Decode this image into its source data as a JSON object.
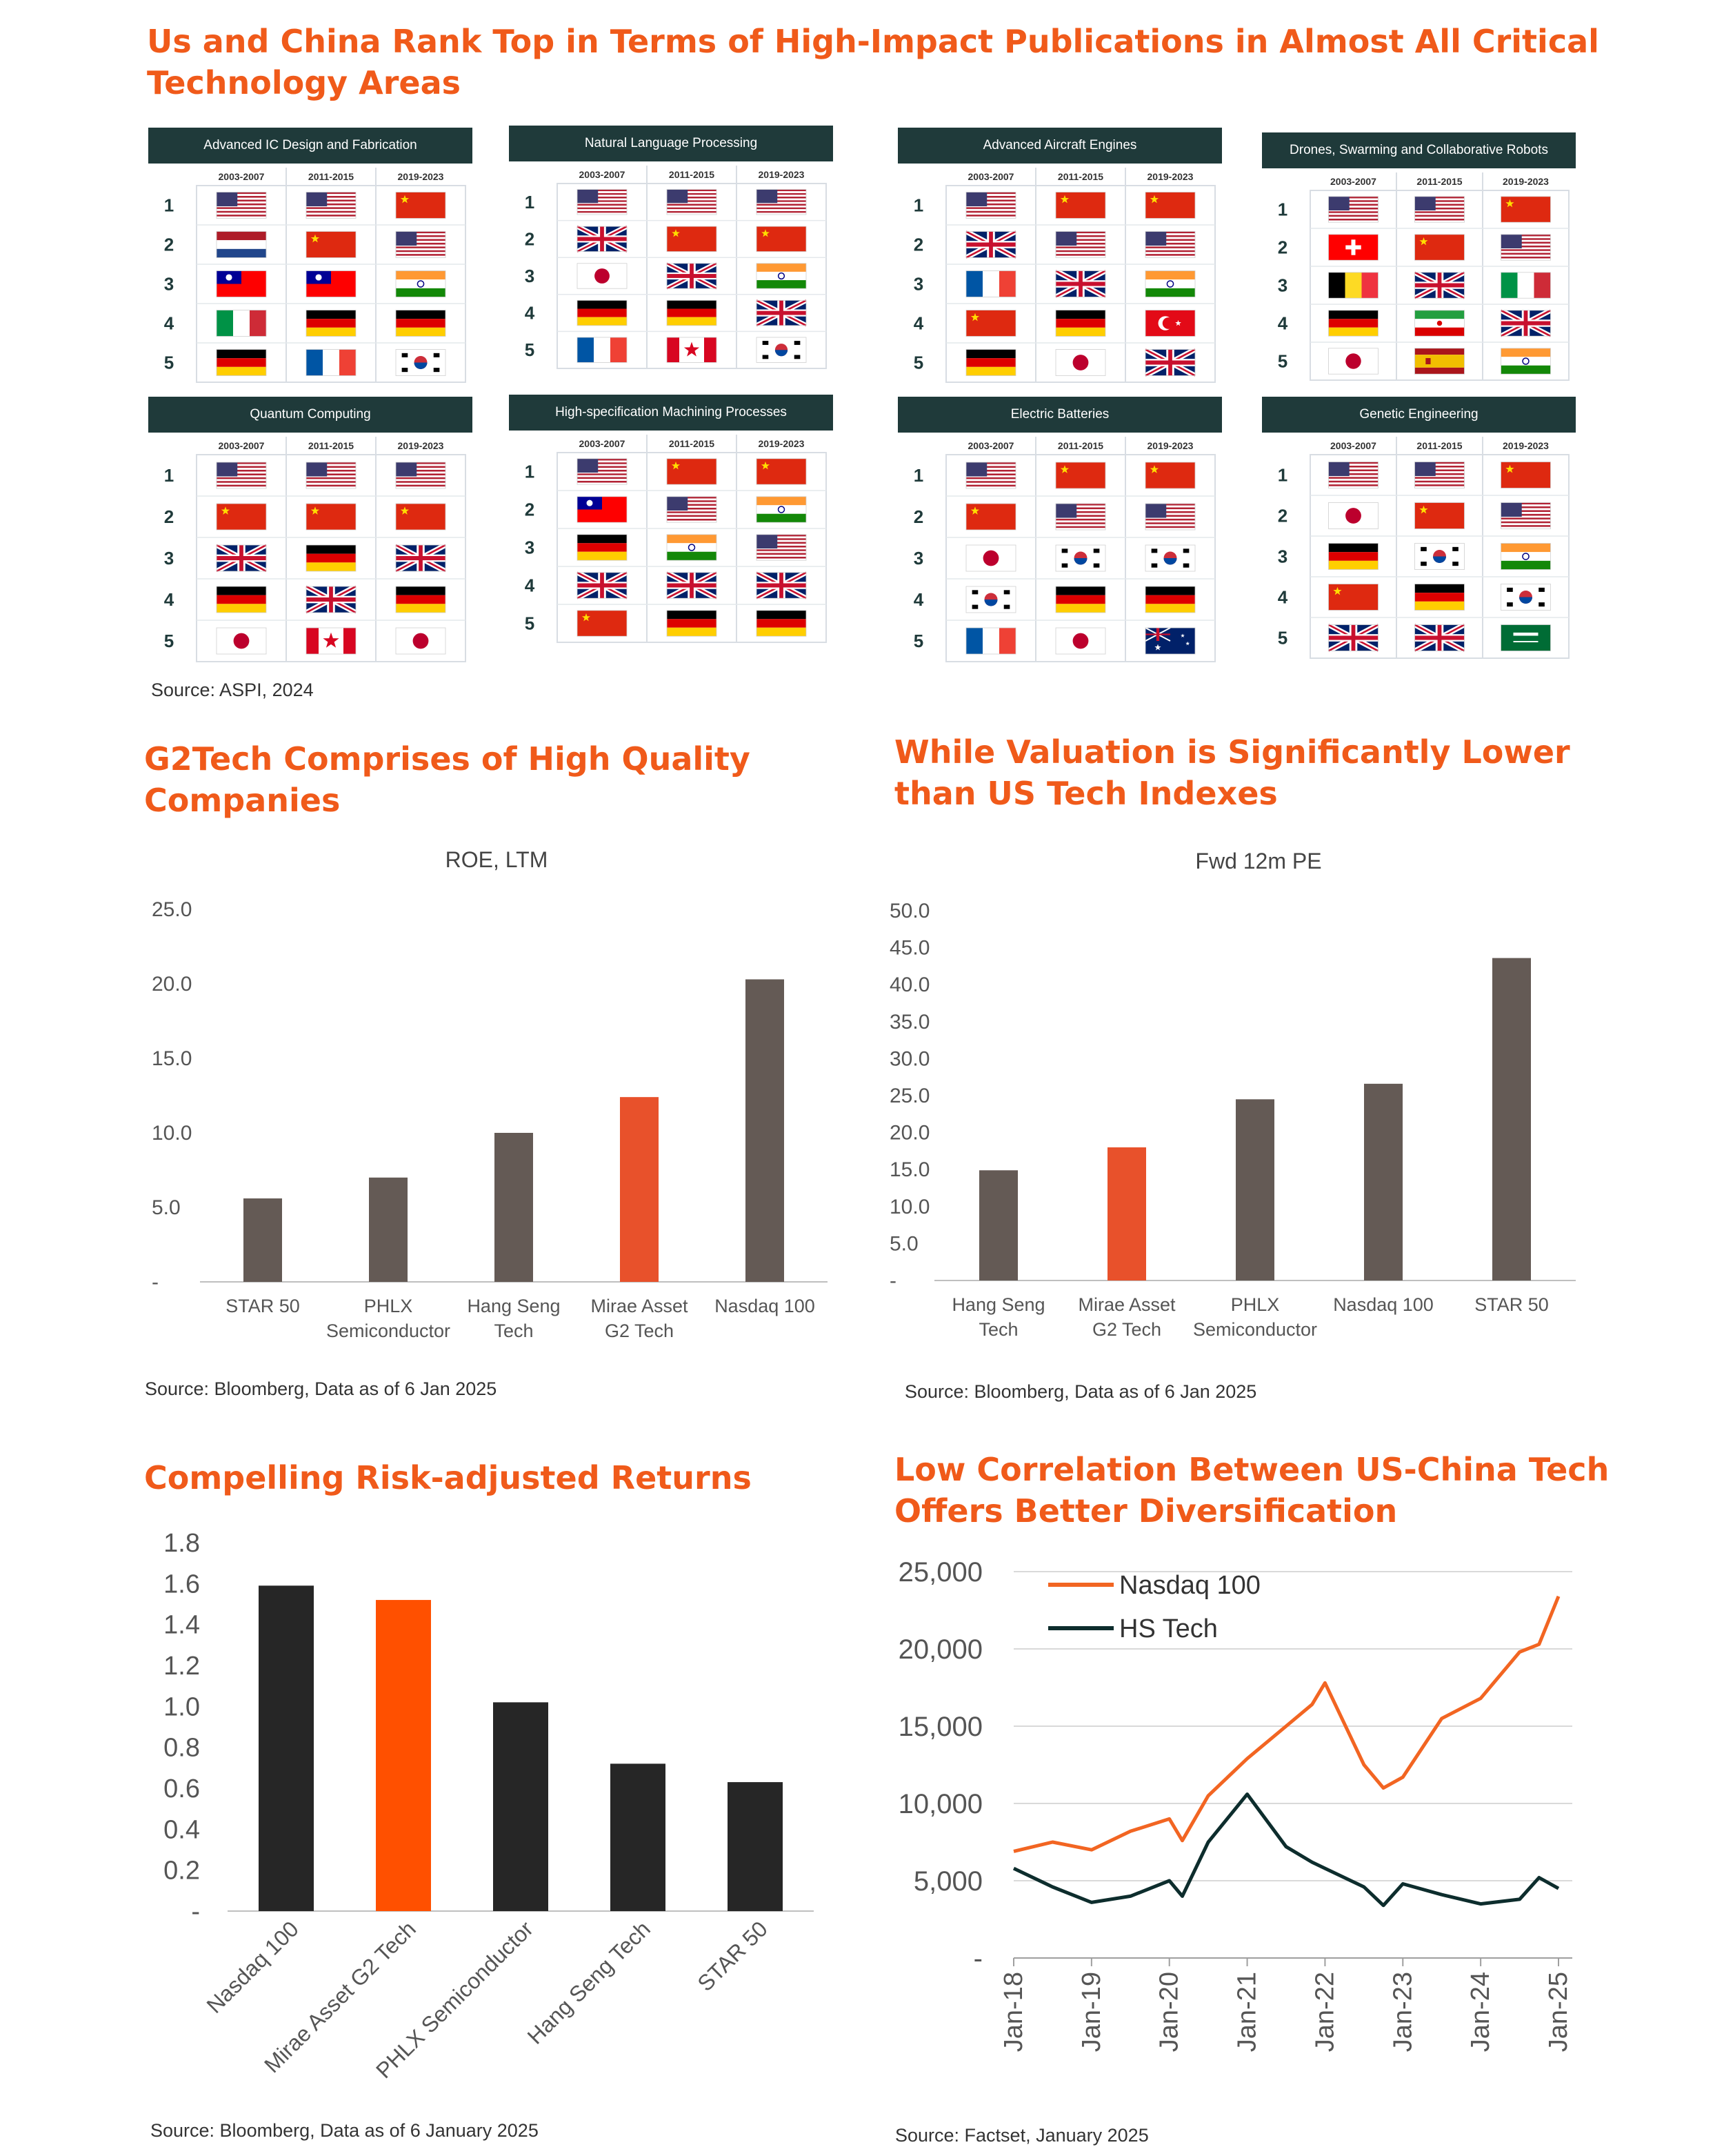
{
  "section1": {
    "heading_line1": "Us and China Rank Top in Terms of High-Impact Publications in Almost All Critical",
    "heading_line2": "Technology Areas",
    "source": "Source: ASPI, 2024",
    "periods": [
      "2003-2007",
      "2011-2015",
      "2019-2023"
    ],
    "ranks": [
      "1",
      "2",
      "3",
      "4",
      "5"
    ],
    "panels": [
      {
        "title": "Advanced IC Design and Fabrication",
        "flags": [
          [
            "us",
            "us",
            "cn"
          ],
          [
            "nl",
            "cn",
            "us"
          ],
          [
            "tw",
            "tw",
            "in"
          ],
          [
            "it",
            "de",
            "de"
          ],
          [
            "de",
            "fr",
            "kr"
          ]
        ]
      },
      {
        "title": "Natural Language Processing",
        "flags": [
          [
            "us",
            "us",
            "us"
          ],
          [
            "gb",
            "cn",
            "cn"
          ],
          [
            "jp",
            "gb",
            "in"
          ],
          [
            "de",
            "de",
            "gb"
          ],
          [
            "fr",
            "ca",
            "kr"
          ]
        ]
      },
      {
        "title": "Advanced Aircraft Engines",
        "flags": [
          [
            "us",
            "cn",
            "cn"
          ],
          [
            "gb",
            "us",
            "us"
          ],
          [
            "fr",
            "gb",
            "in"
          ],
          [
            "cn",
            "de",
            "tr"
          ],
          [
            "de",
            "jp",
            "gb"
          ]
        ]
      },
      {
        "title": "Drones, Swarming and Collaborative Robots",
        "flags": [
          [
            "us",
            "us",
            "cn"
          ],
          [
            "ch",
            "cn",
            "us"
          ],
          [
            "be",
            "gb",
            "it"
          ],
          [
            "de",
            "ir",
            "gb"
          ],
          [
            "jp",
            "es",
            "in"
          ]
        ]
      },
      {
        "title": "Quantum Computing",
        "flags": [
          [
            "us",
            "us",
            "us"
          ],
          [
            "cn",
            "cn",
            "cn"
          ],
          [
            "gb",
            "de",
            "gb"
          ],
          [
            "de",
            "gb",
            "de"
          ],
          [
            "jp",
            "ca",
            "jp"
          ]
        ]
      },
      {
        "title": "High-specification Machining Processes",
        "flags": [
          [
            "us",
            "cn",
            "cn"
          ],
          [
            "tw",
            "us",
            "in"
          ],
          [
            "de",
            "in",
            "us"
          ],
          [
            "gb",
            "gb",
            "gb"
          ],
          [
            "cn",
            "de",
            "de"
          ]
        ]
      },
      {
        "title": "Electric Batteries",
        "flags": [
          [
            "us",
            "cn",
            "cn"
          ],
          [
            "cn",
            "us",
            "us"
          ],
          [
            "jp",
            "kr",
            "kr"
          ],
          [
            "kr",
            "de",
            "de"
          ],
          [
            "fr",
            "jp",
            "au"
          ]
        ]
      },
      {
        "title": "Genetic Engineering",
        "flags": [
          [
            "us",
            "us",
            "cn"
          ],
          [
            "jp",
            "cn",
            "us"
          ],
          [
            "de",
            "kr",
            "in"
          ],
          [
            "cn",
            "de",
            "kr"
          ],
          [
            "gb",
            "gb",
            "sa"
          ]
        ]
      }
    ]
  },
  "roe": {
    "heading_line1": "G2Tech Comprises of High Quality",
    "heading_line2": "Companies",
    "source": "Source: Bloomberg, Data as of 6 Jan 2025",
    "colors": {
      "bar": "#645a55",
      "highlight": "#e8512b"
    },
    "chart_data": {
      "type": "bar",
      "title": "ROE, LTM",
      "categories": [
        [
          "STAR 50"
        ],
        [
          "PHLX",
          "Semiconductor"
        ],
        [
          "Hang Seng",
          "Tech"
        ],
        [
          "Mirae Asset",
          "G2 Tech"
        ],
        [
          "Nasdaq 100"
        ]
      ],
      "values": [
        5.6,
        7.0,
        10.0,
        12.4,
        20.3
      ],
      "highlight_index": 3,
      "ylim": [
        0,
        25
      ],
      "yticks": [
        "-",
        "5.0",
        "10.0",
        "15.0",
        "20.0",
        "25.0"
      ]
    }
  },
  "pe": {
    "heading_line1": "While Valuation is Significantly Lower",
    "heading_line2": "than US Tech Indexes",
    "source": "Source: Bloomberg, Data as of 6 Jan 2025",
    "colors": {
      "bar": "#645a55",
      "highlight": "#e8512b"
    },
    "chart_data": {
      "type": "bar",
      "title": "Fwd 12m PE",
      "categories": [
        [
          "Hang Seng",
          "Tech"
        ],
        [
          "Mirae Asset",
          "G2 Tech"
        ],
        [
          "PHLX",
          "Semiconductor"
        ],
        [
          "Nasdaq 100"
        ],
        [
          "STAR 50"
        ]
      ],
      "values": [
        14.9,
        18.0,
        24.5,
        26.6,
        43.6
      ],
      "highlight_index": 1,
      "ylim": [
        0,
        50
      ],
      "yticks": [
        "-",
        "5.0",
        "10.0",
        "15.0",
        "20.0",
        "25.0",
        "30.0",
        "35.0",
        "40.0",
        "45.0",
        "50.0"
      ]
    }
  },
  "risk": {
    "heading": "Compelling Risk-adjusted Returns",
    "source": "Source: Bloomberg, Data as of 6 January 2025",
    "colors": {
      "bar": "#262626",
      "highlight": "#ff5000"
    },
    "chart_data": {
      "type": "bar",
      "categories": [
        "Nasdaq 100",
        "Mirae Asset G2 Tech",
        "PHLX Semiconductor",
        "Hang Seng Tech",
        "STAR 50"
      ],
      "values": [
        1.59,
        1.52,
        1.02,
        0.72,
        0.63
      ],
      "highlight_index": 1,
      "ylim": [
        0,
        1.8
      ],
      "yticks": [
        "-",
        "0.2",
        "0.4",
        "0.6",
        "0.8",
        "1.0",
        "1.2",
        "1.4",
        "1.6",
        "1.8"
      ]
    }
  },
  "corr": {
    "heading_line1": "Low Correlation Between US-China Tech",
    "heading_line2": "Offers Better Diversification",
    "source": "Source: Factset, January 2025",
    "colors": {
      "nasdaq": "#f26522",
      "hstech": "#0d2d2d"
    },
    "chart_data": {
      "type": "line",
      "x": [
        "Jan-18",
        "Jul-18",
        "Jan-19",
        "Jul-19",
        "Jan-20",
        "Mar-20",
        "Jul-20",
        "Jan-21",
        "Jul-21",
        "Nov-21",
        "Jan-22",
        "Jul-22",
        "Oct-22",
        "Jan-23",
        "Jul-23",
        "Jan-24",
        "Jul-24",
        "Oct-24",
        "Jan-25"
      ],
      "xticks": [
        "Jan-18",
        "Jan-19",
        "Jan-20",
        "Jan-21",
        "Jan-22",
        "Jan-23",
        "Jan-24",
        "Jan-25"
      ],
      "ylim": [
        0,
        25000
      ],
      "yticks": [
        "-",
        "5,000",
        "10,000",
        "15,000",
        "20,000",
        "25,000"
      ],
      "legend_position": "top-left",
      "series": [
        {
          "name": "Nasdaq 100",
          "values": [
            6900,
            7500,
            7000,
            8200,
            9000,
            7600,
            10500,
            12900,
            15000,
            16400,
            17800,
            12500,
            11000,
            11700,
            15500,
            16800,
            19800,
            20300,
            23400
          ]
        },
        {
          "name": "HS Tech",
          "values": [
            5800,
            4600,
            3600,
            4000,
            5000,
            4000,
            7500,
            10600,
            7200,
            6200,
            5800,
            4600,
            3400,
            4800,
            4100,
            3500,
            3800,
            5200,
            4500
          ]
        }
      ]
    }
  }
}
